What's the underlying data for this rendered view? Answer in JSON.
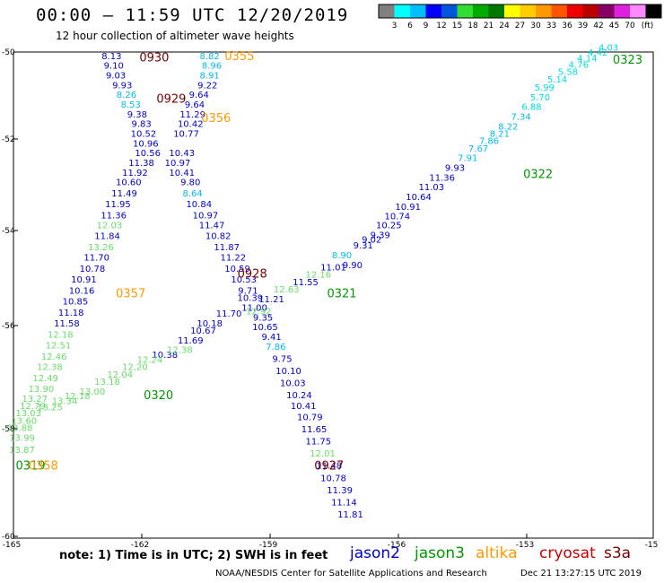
{
  "title": "00:00 – 11:59 UTC 12/20/2019",
  "subtitle": "12 hour collection of altimeter wave heights",
  "note": "note:  1) Time is in UTC;  2) SWH is in feet",
  "credit": "NOAA/NESDIS Center for Satellite Applications and Research",
  "timestamp": "Dec 21 13:27:15 UTC 2019",
  "colors": {
    "jason2": "#0000cc",
    "jason3": "#009900",
    "altika": "#ff9900",
    "cryosat": "#cc0000",
    "s3a": "#770000",
    "lightblue": "#00bbee",
    "cyan": "#00dddd",
    "lightgreen": "#66dd66"
  },
  "satellites": [
    {
      "name": "jason2",
      "color": "#0000cc"
    },
    {
      "name": "jason3",
      "color": "#009900"
    },
    {
      "name": "altika",
      "color": "#ff9900"
    },
    {
      "name": "cryosat",
      "color": "#cc0000"
    },
    {
      "name": "s3a",
      "color": "#770000"
    }
  ],
  "chart_data": {
    "type": "scatter",
    "title": "00:00 – 11:59 UTC 12/20/2019",
    "subtitle": "12 hour collection of altimeter wave heights",
    "xlim": [
      -165,
      -150
    ],
    "ylim": [
      -60,
      -50
    ],
    "x_ticks": [
      "-165",
      "-162",
      "-159",
      "-156",
      "-153",
      "-15"
    ],
    "y_ticks": [
      "-50",
      "-52",
      "-54",
      "-56",
      "-58",
      "-60"
    ],
    "color_scale": {
      "labels": [
        "3",
        "6",
        "9",
        "12",
        "15",
        "18",
        "21",
        "24",
        "27",
        "30",
        "33",
        "36",
        "39",
        "42",
        "45",
        "70",
        "(ft)"
      ],
      "colors": [
        "#808080",
        "#00ffff",
        "#00bfff",
        "#0000ff",
        "#0055dd",
        "#33dd33",
        "#00aa00",
        "#007700",
        "#ffff00",
        "#ffcc00",
        "#ff9900",
        "#ff5500",
        "#ee0000",
        "#bb0000",
        "#880066",
        "#dd22dd",
        "#ff88ff",
        "#000000"
      ]
    },
    "values": [
      {
        "t": "8.13",
        "x": -162.7,
        "y": -50.07,
        "c": "#0000cc"
      },
      {
        "t": "9.10",
        "x": -162.65,
        "y": -50.27,
        "c": "#0000cc"
      },
      {
        "t": "9.03",
        "x": -162.6,
        "y": -50.47,
        "c": "#0000cc"
      },
      {
        "t": "9.93",
        "x": -162.45,
        "y": -50.67,
        "c": "#0000cc"
      },
      {
        "t": "8.26",
        "x": -162.35,
        "y": -50.87,
        "c": "#00bbee"
      },
      {
        "t": "8.53",
        "x": -162.25,
        "y": -51.07,
        "c": "#00bbee"
      },
      {
        "t": "9.38",
        "x": -162.1,
        "y": -51.27,
        "c": "#0000cc"
      },
      {
        "t": "9.83",
        "x": -162.0,
        "y": -51.47,
        "c": "#0000cc"
      },
      {
        "t": "10.52",
        "x": -161.95,
        "y": -51.67,
        "c": "#0000cc"
      },
      {
        "t": "10.96",
        "x": -161.9,
        "y": -51.87,
        "c": "#0000cc"
      },
      {
        "t": "10.56",
        "x": -161.85,
        "y": -52.07,
        "c": "#0000cc"
      },
      {
        "t": "11.38",
        "x": -162.0,
        "y": -52.27,
        "c": "#0000cc"
      },
      {
        "t": "11.92",
        "x": -162.15,
        "y": -52.47,
        "c": "#0000cc"
      },
      {
        "t": "10.60",
        "x": -162.3,
        "y": -52.67,
        "c": "#0000cc"
      },
      {
        "t": "11.49",
        "x": -162.4,
        "y": -52.9,
        "c": "#0000cc"
      },
      {
        "t": "11.95",
        "x": -162.55,
        "y": -53.12,
        "c": "#0000cc"
      },
      {
        "t": "11.36",
        "x": -162.65,
        "y": -53.35,
        "c": "#0000cc"
      },
      {
        "t": "12.03",
        "x": -162.75,
        "y": -53.55,
        "c": "#66dd66"
      },
      {
        "t": "11.84",
        "x": -162.8,
        "y": -53.77,
        "c": "#0000cc"
      },
      {
        "t": "13.26",
        "x": -162.95,
        "y": -54.0,
        "c": "#66dd66"
      },
      {
        "t": "11.70",
        "x": -163.05,
        "y": -54.22,
        "c": "#0000cc"
      },
      {
        "t": "10.78",
        "x": -163.15,
        "y": -54.45,
        "c": "#0000cc"
      },
      {
        "t": "10.91",
        "x": -163.35,
        "y": -54.67,
        "c": "#0000cc"
      },
      {
        "t": "10.16",
        "x": -163.4,
        "y": -54.9,
        "c": "#0000cc"
      },
      {
        "t": "10.85",
        "x": -163.55,
        "y": -55.12,
        "c": "#0000cc"
      },
      {
        "t": "11.18",
        "x": -163.65,
        "y": -55.35,
        "c": "#0000cc"
      },
      {
        "t": "11.58",
        "x": -163.75,
        "y": -55.57,
        "c": "#0000cc"
      },
      {
        "t": "12.18",
        "x": -163.9,
        "y": -55.8,
        "c": "#66dd66"
      },
      {
        "t": "12.51",
        "x": -163.95,
        "y": -56.02,
        "c": "#66dd66"
      },
      {
        "t": "12.46",
        "x": -164.05,
        "y": -56.25,
        "c": "#66dd66"
      },
      {
        "t": "12.38",
        "x": -164.15,
        "y": -56.47,
        "c": "#66dd66"
      },
      {
        "t": "12.49",
        "x": -164.25,
        "y": -56.7,
        "c": "#66dd66"
      },
      {
        "t": "13.90",
        "x": -164.35,
        "y": -56.92,
        "c": "#66dd66"
      },
      {
        "t": "13.27",
        "x": -164.5,
        "y": -57.12,
        "c": "#66dd66"
      },
      {
        "t": "12.79",
        "x": -164.55,
        "y": -57.27,
        "c": "#66dd66"
      },
      {
        "t": "13.03",
        "x": -164.65,
        "y": -57.42,
        "c": "#66dd66"
      },
      {
        "t": "13.60",
        "x": -164.75,
        "y": -57.57,
        "c": "#66dd66"
      },
      {
        "t": "13.88",
        "x": -164.85,
        "y": -57.72,
        "c": "#66dd66"
      },
      {
        "t": "13.99",
        "x": -164.8,
        "y": -57.92,
        "c": "#66dd66"
      },
      {
        "t": "13.87",
        "x": -164.8,
        "y": -58.17,
        "c": "#66dd66"
      },
      {
        "t": "9.64",
        "x": -160.65,
        "y": -50.87,
        "c": "#0000cc"
      },
      {
        "t": "9.64",
        "x": -160.75,
        "y": -51.07,
        "c": "#0000cc"
      },
      {
        "t": "11.29",
        "x": -160.8,
        "y": -51.27,
        "c": "#0000cc"
      },
      {
        "t": "10.42",
        "x": -160.85,
        "y": -51.47,
        "c": "#0000cc"
      },
      {
        "t": "10.77",
        "x": -160.95,
        "y": -51.67,
        "c": "#0000cc"
      },
      {
        "t": "10.43",
        "x": -161.05,
        "y": -52.07,
        "c": "#0000cc"
      },
      {
        "t": "10.97",
        "x": -161.15,
        "y": -52.27,
        "c": "#0000cc"
      },
      {
        "t": "10.41",
        "x": -161.05,
        "y": -52.47,
        "c": "#0000cc"
      },
      {
        "t": "9.80",
        "x": -160.85,
        "y": -52.67,
        "c": "#0000cc"
      },
      {
        "t": "8.64",
        "x": -160.8,
        "y": -52.9,
        "c": "#00bbee"
      },
      {
        "t": "10.84",
        "x": -160.65,
        "y": -53.12,
        "c": "#0000cc"
      },
      {
        "t": "10.97",
        "x": -160.5,
        "y": -53.35,
        "c": "#0000cc"
      },
      {
        "t": "11.47",
        "x": -160.35,
        "y": -53.55,
        "c": "#0000cc"
      },
      {
        "t": "10.82",
        "x": -160.2,
        "y": -53.77,
        "c": "#0000cc"
      },
      {
        "t": "11.87",
        "x": -160.0,
        "y": -54.0,
        "c": "#0000cc"
      },
      {
        "t": "11.22",
        "x": -159.85,
        "y": -54.22,
        "c": "#0000cc"
      },
      {
        "t": "10.59",
        "x": -159.75,
        "y": -54.45,
        "c": "#0000cc"
      },
      {
        "t": "10.53",
        "x": -159.6,
        "y": -54.67,
        "c": "#0000cc"
      },
      {
        "t": "9.71",
        "x": -159.5,
        "y": -54.9,
        "c": "#0000cc"
      },
      {
        "t": "10.39",
        "x": -159.45,
        "y": -55.05,
        "c": "#0000cc"
      },
      {
        "t": "11.00",
        "x": -159.35,
        "y": -55.25,
        "c": "#0000cc"
      },
      {
        "t": "9.35",
        "x": -159.15,
        "y": -55.45,
        "c": "#0000cc"
      },
      {
        "t": "10.65",
        "x": -159.1,
        "y": -55.65,
        "c": "#0000cc"
      },
      {
        "t": "9.41",
        "x": -158.95,
        "y": -55.85,
        "c": "#0000cc"
      },
      {
        "t": "7.86",
        "x": -158.85,
        "y": -56.05,
        "c": "#00bbee"
      },
      {
        "t": "9.75",
        "x": -158.7,
        "y": -56.3,
        "c": "#0000cc"
      },
      {
        "t": "10.10",
        "x": -158.55,
        "y": -56.55,
        "c": "#0000cc"
      },
      {
        "t": "10.03",
        "x": -158.45,
        "y": -56.8,
        "c": "#0000cc"
      },
      {
        "t": "10.24",
        "x": -158.3,
        "y": -57.05,
        "c": "#0000cc"
      },
      {
        "t": "10.41",
        "x": -158.2,
        "y": -57.27,
        "c": "#0000cc"
      },
      {
        "t": "10.79",
        "x": -158.05,
        "y": -57.5,
        "c": "#0000cc"
      },
      {
        "t": "11.65",
        "x": -157.95,
        "y": -57.75,
        "c": "#0000cc"
      },
      {
        "t": "11.75",
        "x": -157.85,
        "y": -58.0,
        "c": "#0000cc"
      },
      {
        "t": "12.01",
        "x": -157.75,
        "y": -58.25,
        "c": "#66dd66"
      },
      {
        "t": "11.48",
        "x": -157.6,
        "y": -58.5,
        "c": "#0000cc"
      },
      {
        "t": "10.78",
        "x": -157.5,
        "y": -58.75,
        "c": "#0000cc"
      },
      {
        "t": "11.39",
        "x": -157.35,
        "y": -59.0,
        "c": "#0000cc"
      },
      {
        "t": "11.14",
        "x": -157.25,
        "y": -59.25,
        "c": "#0000cc"
      },
      {
        "t": "11.81",
        "x": -157.1,
        "y": -59.5,
        "c": "#0000cc"
      },
      {
        "t": "8.82",
        "x": -160.4,
        "y": -50.07,
        "c": "#00bbee"
      },
      {
        "t": "8.96",
        "x": -160.35,
        "y": -50.27,
        "c": "#00bbee"
      },
      {
        "t": "8.91",
        "x": -160.4,
        "y": -50.47,
        "c": "#00bbee"
      },
      {
        "t": "9.22",
        "x": -160.45,
        "y": -50.67,
        "c": "#0000cc"
      },
      {
        "t": "10.18",
        "x": -160.4,
        "y": -55.57,
        "c": "#0000cc"
      },
      {
        "t": "10.67",
        "x": -160.55,
        "y": -55.72,
        "c": "#0000cc"
      },
      {
        "t": "11.69",
        "x": -160.85,
        "y": -55.92,
        "c": "#0000cc"
      },
      {
        "t": "10.38",
        "x": -161.45,
        "y": -56.22,
        "c": "#0000cc"
      },
      {
        "t": "11.70",
        "x": -159.95,
        "y": -55.37,
        "c": "#0000cc"
      },
      {
        "t": "12.38",
        "x": -161.1,
        "y": -56.12,
        "c": "#66dd66"
      },
      {
        "t": "12.24",
        "x": -161.8,
        "y": -56.32,
        "c": "#66dd66"
      },
      {
        "t": "12.20",
        "x": -162.15,
        "y": -56.47,
        "c": "#66dd66"
      },
      {
        "t": "12.04",
        "x": -162.5,
        "y": -56.62,
        "c": "#66dd66"
      },
      {
        "t": "13.18",
        "x": -162.8,
        "y": -56.77,
        "c": "#66dd66"
      },
      {
        "t": "13.00",
        "x": -163.15,
        "y": -56.97,
        "c": "#66dd66"
      },
      {
        "t": "12.18",
        "x": -163.5,
        "y": -57.07,
        "c": "#66dd66"
      },
      {
        "t": "13.34",
        "x": -163.8,
        "y": -57.17,
        "c": "#66dd66"
      },
      {
        "t": "13.25",
        "x": -164.15,
        "y": -57.3,
        "c": "#66dd66"
      },
      {
        "t": "12.92",
        "x": -159.25,
        "y": -55.32,
        "c": "#66dd66"
      },
      {
        "t": "11.21",
        "x": -158.95,
        "y": -55.07,
        "c": "#0000cc"
      },
      {
        "t": "12.63",
        "x": -158.6,
        "y": -54.87,
        "c": "#66dd66"
      },
      {
        "t": "11.55",
        "x": -158.15,
        "y": -54.72,
        "c": "#0000cc"
      },
      {
        "t": "12.16",
        "x": -157.85,
        "y": -54.57,
        "c": "#66dd66"
      },
      {
        "t": "11.01",
        "x": -157.5,
        "y": -54.42,
        "c": "#0000cc"
      },
      {
        "t": "8.90",
        "x": -157.3,
        "y": -54.17,
        "c": "#00bbee"
      },
      {
        "t": "9.90",
        "x": -157.05,
        "y": -54.37,
        "c": "#0000cc"
      },
      {
        "t": "9.31",
        "x": -156.8,
        "y": -53.97,
        "c": "#0000cc"
      },
      {
        "t": "9.02",
        "x": -156.6,
        "y": -53.85,
        "c": "#0000cc"
      },
      {
        "t": "9.39",
        "x": -156.4,
        "y": -53.75,
        "c": "#0000cc"
      },
      {
        "t": "10.25",
        "x": -156.2,
        "y": -53.55,
        "c": "#0000cc"
      },
      {
        "t": "10.74",
        "x": -156.0,
        "y": -53.37,
        "c": "#0000cc"
      },
      {
        "t": "10.91",
        "x": -155.75,
        "y": -53.17,
        "c": "#0000cc"
      },
      {
        "t": "10.64",
        "x": -155.5,
        "y": -52.97,
        "c": "#0000cc"
      },
      {
        "t": "11.03",
        "x": -155.2,
        "y": -52.77,
        "c": "#0000cc"
      },
      {
        "t": "11.36",
        "x": -154.95,
        "y": -52.57,
        "c": "#0000cc"
      },
      {
        "t": "9.93",
        "x": -154.65,
        "y": -52.37,
        "c": "#0000cc"
      },
      {
        "t": "7.91",
        "x": -154.35,
        "y": -52.17,
        "c": "#00bbee"
      },
      {
        "t": "7.67",
        "x": -154.1,
        "y": -51.97,
        "c": "#00bbee"
      },
      {
        "t": "7.86",
        "x": -153.85,
        "y": -51.82,
        "c": "#00bbee"
      },
      {
        "t": "8.21",
        "x": -153.6,
        "y": -51.67,
        "c": "#00bbee"
      },
      {
        "t": "8.22",
        "x": -153.4,
        "y": -51.52,
        "c": "#00bbee"
      },
      {
        "t": "7.34",
        "x": -153.1,
        "y": -51.32,
        "c": "#00bbee"
      },
      {
        "t": "6.88",
        "x": -152.85,
        "y": -51.12,
        "c": "#00dddd"
      },
      {
        "t": "5.70",
        "x": -152.65,
        "y": -50.92,
        "c": "#00dddd"
      },
      {
        "t": "5.99",
        "x": -152.55,
        "y": -50.72,
        "c": "#00dddd"
      },
      {
        "t": "5.14",
        "x": -152.25,
        "y": -50.55,
        "c": "#00dddd"
      },
      {
        "t": "5.58",
        "x": -152.0,
        "y": -50.4,
        "c": "#00dddd"
      },
      {
        "t": "4.76",
        "x": -151.75,
        "y": -50.25,
        "c": "#00dddd"
      },
      {
        "t": "4.14",
        "x": -151.55,
        "y": -50.12,
        "c": "#00dddd"
      },
      {
        "t": "4.42",
        "x": -151.3,
        "y": -50.0,
        "c": "#00dddd"
      },
      {
        "t": "4.03",
        "x": -151.05,
        "y": -49.9,
        "c": "#00dddd"
      }
    ],
    "passes": [
      {
        "t": "0930",
        "x": -161.7,
        "y": -50.1,
        "c": "#770000"
      },
      {
        "t": "0355",
        "x": -159.7,
        "y": -50.07,
        "c": "#ff9900"
      },
      {
        "t": "0929",
        "x": -161.3,
        "y": -50.95,
        "c": "#770000"
      },
      {
        "t": "0356",
        "x": -160.25,
        "y": -51.35,
        "c": "#ff9900"
      },
      {
        "t": "0928",
        "x": -159.4,
        "y": -54.55,
        "c": "#770000"
      },
      {
        "t": "0357",
        "x": -162.25,
        "y": -54.95,
        "c": "#ff9900"
      },
      {
        "t": "0321",
        "x": -157.3,
        "y": -54.95,
        "c": "#009900"
      },
      {
        "t": "0320",
        "x": -161.6,
        "y": -57.05,
        "c": "#009900"
      },
      {
        "t": "0927",
        "x": -157.6,
        "y": -58.5,
        "c": "#770000"
      },
      {
        "t": "0319",
        "x": -164.6,
        "y": -58.5,
        "c": "#009900"
      },
      {
        "t": "0358",
        "x": -164.3,
        "y": -58.5,
        "c": "#ff9900"
      },
      {
        "t": "0322",
        "x": -152.7,
        "y": -52.5,
        "c": "#009900"
      },
      {
        "t": "0323",
        "x": -150.6,
        "y": -50.15,
        "c": "#009900"
      }
    ]
  }
}
